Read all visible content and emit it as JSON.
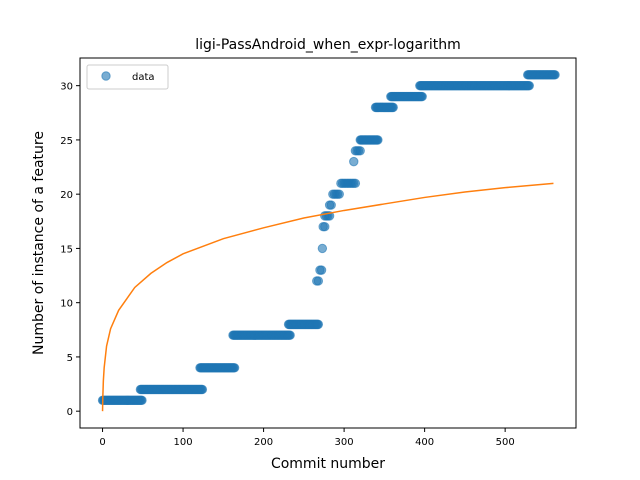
{
  "chart_data": {
    "type": "scatter",
    "title": "ligi-PassAndroid_when_expr-logarithm",
    "xlabel": "Commit number",
    "ylabel": "Number of instance of a feature",
    "xlim": [
      -28,
      588
    ],
    "ylim": [
      -1.55,
      32.55
    ],
    "xticks": [
      0,
      100,
      200,
      300,
      400,
      500
    ],
    "yticks": [
      0,
      5,
      10,
      15,
      20,
      25,
      30
    ],
    "grid": false,
    "legend": {
      "placement": "top-left",
      "entries": [
        "data"
      ]
    },
    "series": [
      {
        "name": "data",
        "kind": "points",
        "color": "#1f77b4",
        "opacity": 0.6,
        "segments": [
          {
            "x_start": 0,
            "x_end": 49,
            "y": 1
          },
          {
            "x_start": 47,
            "x_end": 124,
            "y": 2
          },
          {
            "x_start": 121,
            "x_end": 164,
            "y": 4
          },
          {
            "x_start": 162,
            "x_end": 233,
            "y": 7
          },
          {
            "x_start": 231,
            "x_end": 268,
            "y": 8
          }
        ],
        "points": [
          [
            266,
            12
          ],
          [
            268,
            12
          ],
          [
            270,
            13
          ],
          [
            272,
            13
          ],
          [
            274,
            17
          ],
          [
            276,
            17
          ],
          [
            273,
            15
          ],
          [
            276,
            18
          ],
          [
            278,
            18
          ],
          [
            280,
            18
          ],
          [
            282,
            18
          ],
          [
            282,
            19
          ],
          [
            284,
            19
          ],
          [
            286,
            20
          ],
          [
            288,
            20
          ],
          [
            290,
            20
          ],
          [
            292,
            20
          ],
          [
            294,
            20
          ],
          [
            296,
            21
          ],
          [
            298,
            21
          ],
          [
            300,
            21
          ],
          [
            302,
            21
          ],
          [
            304,
            21
          ],
          [
            306,
            21
          ],
          [
            308,
            21
          ],
          [
            310,
            21
          ],
          [
            312,
            21
          ],
          [
            314,
            21
          ],
          [
            312,
            23
          ],
          [
            314,
            24
          ],
          [
            316,
            24
          ],
          [
            318,
            24
          ],
          [
            320,
            24
          ]
        ],
        "segments_late": [
          {
            "x_start": 320,
            "x_end": 342,
            "y": 25
          },
          {
            "x_start": 339,
            "x_end": 361,
            "y": 28
          },
          {
            "x_start": 358,
            "x_end": 397,
            "y": 29
          },
          {
            "x_start": 394,
            "x_end": 530,
            "y": 30
          },
          {
            "x_start": 528,
            "x_end": 562,
            "y": 31
          }
        ]
      },
      {
        "name": "",
        "kind": "line",
        "color": "#ff7f0e",
        "model": "logarithm",
        "points": [
          [
            0,
            0
          ],
          [
            0.3,
            1.2
          ],
          [
            1,
            2.8
          ],
          [
            2,
            4.0
          ],
          [
            5,
            6.0
          ],
          [
            10,
            7.6
          ],
          [
            20,
            9.3
          ],
          [
            40,
            11.4
          ],
          [
            60,
            12.7
          ],
          [
            80,
            13.7
          ],
          [
            100,
            14.5
          ],
          [
            150,
            15.9
          ],
          [
            200,
            16.9
          ],
          [
            250,
            17.8
          ],
          [
            300,
            18.5
          ],
          [
            350,
            19.1
          ],
          [
            400,
            19.7
          ],
          [
            450,
            20.2
          ],
          [
            500,
            20.6
          ],
          [
            560,
            21.0
          ]
        ]
      }
    ]
  }
}
